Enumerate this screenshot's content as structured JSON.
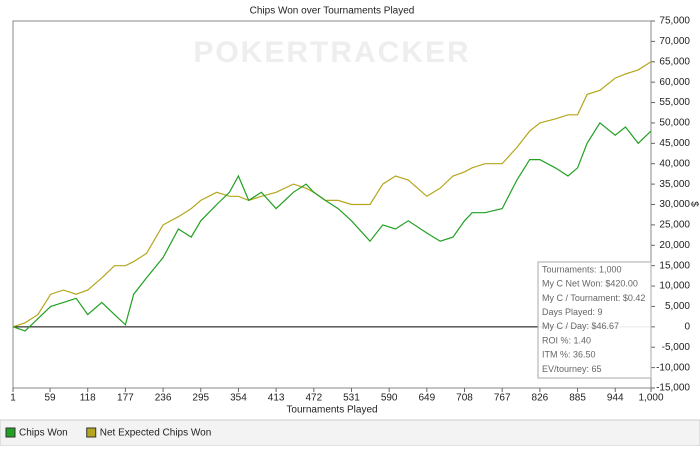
{
  "chart_data": {
    "type": "line",
    "title": "Chips Won over Tournaments Played",
    "watermark": "POKERTRACKER",
    "x_label": "Tournaments Played",
    "y_label": "$",
    "x": [
      1,
      20,
      40,
      60,
      80,
      100,
      118,
      140,
      160,
      177,
      190,
      210,
      236,
      260,
      280,
      295,
      320,
      340,
      354,
      370,
      390,
      413,
      440,
      460,
      472,
      490,
      510,
      531,
      560,
      580,
      600,
      620,
      649,
      670,
      690,
      708,
      720,
      740,
      767,
      790,
      810,
      826,
      850,
      870,
      885,
      900,
      920,
      944,
      960,
      980,
      1000
    ],
    "series": [
      {
        "name": "Chips Won",
        "color": "#22a022",
        "values": [
          0,
          -1000,
          2000,
          5000,
          6000,
          7000,
          3000,
          6000,
          3000,
          500,
          8000,
          12000,
          17000,
          24000,
          22000,
          26000,
          30000,
          33000,
          37000,
          31000,
          33000,
          29000,
          33000,
          35000,
          33000,
          31000,
          29000,
          26000,
          21000,
          25000,
          24000,
          26000,
          23000,
          21000,
          22000,
          26000,
          28000,
          28000,
          29000,
          36000,
          41000,
          41000,
          39000,
          37000,
          39000,
          45000,
          50000,
          47000,
          49000,
          45000,
          48000
        ]
      },
      {
        "name": "Net Expected Chips Won",
        "color": "#b5a61e",
        "values": [
          0,
          1000,
          3000,
          8000,
          9000,
          8000,
          9000,
          12000,
          15000,
          15000,
          16000,
          18000,
          25000,
          27000,
          29000,
          31000,
          33000,
          32000,
          32000,
          31000,
          32000,
          33000,
          35000,
          34000,
          33000,
          31000,
          31000,
          30000,
          30000,
          35000,
          37000,
          36000,
          32000,
          34000,
          37000,
          38000,
          39000,
          40000,
          40000,
          44000,
          48000,
          50000,
          51000,
          52000,
          52000,
          57000,
          58000,
          61000,
          62000,
          63000,
          65000
        ]
      }
    ],
    "xlim": [
      1,
      1000
    ],
    "xticks": [
      1,
      59,
      118,
      177,
      236,
      295,
      354,
      413,
      472,
      531,
      590,
      649,
      708,
      767,
      826,
      885,
      944,
      {
        "value": 1000,
        "label": "1,000"
      }
    ],
    "ylim": [
      -15000,
      75000
    ],
    "yticks": [
      {
        "value": -15000,
        "label": "-15,000"
      },
      {
        "value": -10000,
        "label": "-10,000"
      },
      {
        "value": -5000,
        "label": "-5,000"
      },
      0,
      {
        "value": 5000,
        "label": "5,000"
      },
      {
        "value": 10000,
        "label": "10,000"
      },
      {
        "value": 15000,
        "label": "15,000"
      },
      {
        "value": 20000,
        "label": "20,000"
      },
      {
        "value": 25000,
        "label": "25,000"
      },
      {
        "value": 30000,
        "label": "30,000"
      },
      {
        "value": 35000,
        "label": "35,000"
      },
      {
        "value": 40000,
        "label": "40,000"
      },
      {
        "value": 45000,
        "label": "45,000"
      },
      {
        "value": 50000,
        "label": "50,000"
      },
      {
        "value": 55000,
        "label": "55,000"
      },
      {
        "value": 60000,
        "label": "60,000"
      },
      {
        "value": 65000,
        "label": "65,000"
      },
      {
        "value": 70000,
        "label": "70,000"
      },
      {
        "value": 75000,
        "label": "75,000"
      }
    ],
    "stats": [
      "Tournaments: 1,000",
      "My C Net Won: $420.00",
      "My C / Tournament: $0.42",
      "Days Played: 9",
      "My C / Day: $46.67",
      "ROI %: 1.40",
      "ITM %: 36.50",
      "EV/tourney: 65"
    ]
  }
}
